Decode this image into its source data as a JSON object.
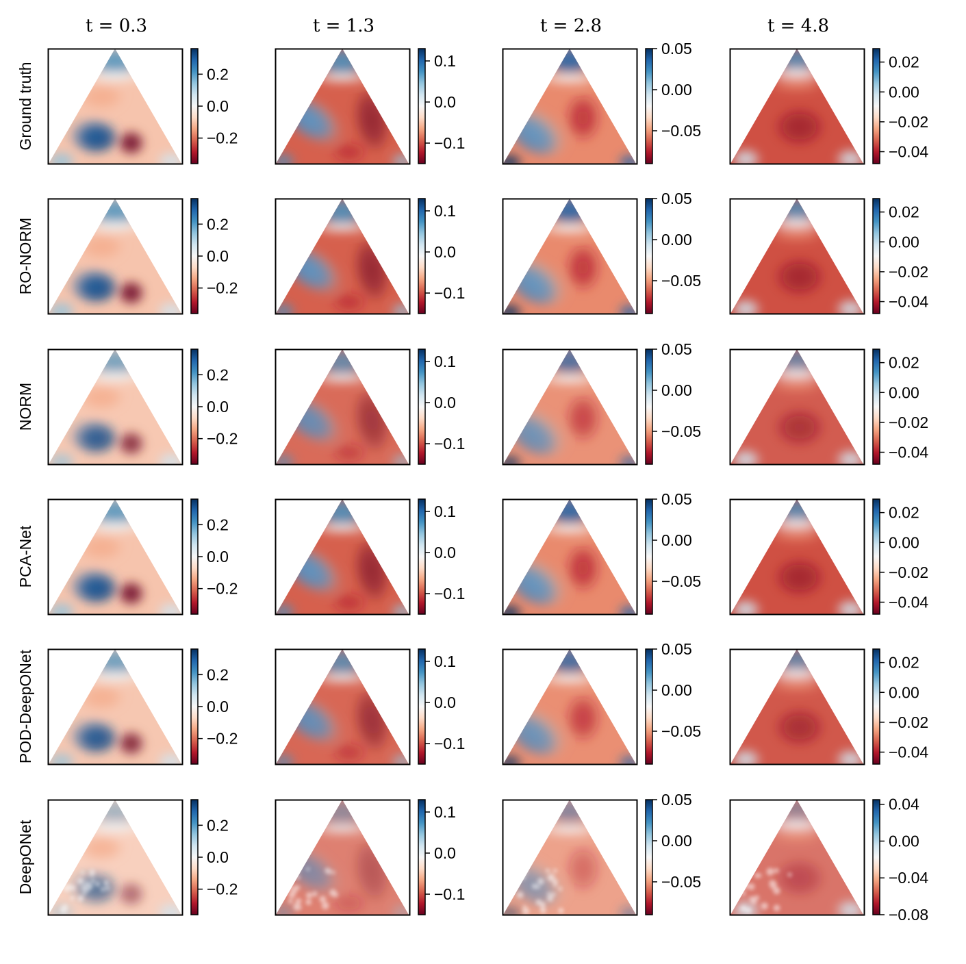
{
  "chart_data": {
    "type": "heatmap",
    "layout": "grid of triangular-domain field snapshots",
    "colormap": "RdBu",
    "colormap_stops": [
      "#67001f",
      "#b2182b",
      "#d6604d",
      "#f4a582",
      "#fddbc7",
      "#f7f7f7",
      "#d1e5f0",
      "#92c5de",
      "#4393c3",
      "#2166ac",
      "#053061"
    ],
    "columns": [
      "t = 0.3",
      "t = 1.3",
      "t = 2.8",
      "t = 4.8"
    ],
    "rows": [
      "Ground truth",
      "RO-NORM",
      "NORM",
      "PCA-Net",
      "POD-DeepONet",
      "DeepONet"
    ],
    "color_ranges": [
      [
        [
          -0.36,
          0.36
        ],
        [
          -0.15,
          0.13
        ],
        [
          -0.09,
          0.05
        ],
        [
          -0.048,
          0.029
        ]
      ],
      [
        [
          -0.36,
          0.36
        ],
        [
          -0.15,
          0.13
        ],
        [
          -0.09,
          0.05
        ],
        [
          -0.048,
          0.029
        ]
      ],
      [
        [
          -0.36,
          0.36
        ],
        [
          -0.15,
          0.13
        ],
        [
          -0.09,
          0.05
        ],
        [
          -0.048,
          0.029
        ]
      ],
      [
        [
          -0.36,
          0.36
        ],
        [
          -0.15,
          0.13
        ],
        [
          -0.09,
          0.05
        ],
        [
          -0.048,
          0.029
        ]
      ],
      [
        [
          -0.36,
          0.36
        ],
        [
          -0.15,
          0.13
        ],
        [
          -0.09,
          0.05
        ],
        [
          -0.048,
          0.029
        ]
      ],
      [
        [
          -0.36,
          0.36
        ],
        [
          -0.15,
          0.13
        ],
        [
          -0.09,
          0.05
        ],
        [
          -0.08,
          0.045
        ]
      ]
    ],
    "tick_values": [
      [
        [
          0.2,
          0.0,
          -0.2
        ],
        [
          0.1,
          0.0,
          -0.1
        ],
        [
          0.05,
          0.0,
          -0.05
        ],
        [
          0.02,
          0.0,
          -0.02,
          -0.04
        ]
      ],
      [
        [
          0.2,
          0.0,
          -0.2
        ],
        [
          0.1,
          0.0,
          -0.1
        ],
        [
          0.05,
          0.0,
          -0.05
        ],
        [
          0.02,
          0.0,
          -0.02,
          -0.04
        ]
      ],
      [
        [
          0.2,
          0.0,
          -0.2
        ],
        [
          0.1,
          0.0,
          -0.1
        ],
        [
          0.05,
          0.0,
          -0.05
        ],
        [
          0.02,
          0.0,
          -0.02,
          -0.04
        ]
      ],
      [
        [
          0.2,
          0.0,
          -0.2
        ],
        [
          0.1,
          0.0,
          -0.1
        ],
        [
          0.05,
          0.0,
          -0.05
        ],
        [
          0.02,
          0.0,
          -0.02,
          -0.04
        ]
      ],
      [
        [
          0.2,
          0.0,
          -0.2
        ],
        [
          0.1,
          0.0,
          -0.1
        ],
        [
          0.05,
          0.0,
          -0.05
        ],
        [
          0.02,
          0.0,
          -0.02,
          -0.04
        ]
      ],
      [
        [
          0.2,
          0.0,
          -0.2
        ],
        [
          0.1,
          0.0,
          -0.1
        ],
        [
          0.05,
          0.0,
          -0.05
        ],
        [
          0.04,
          0.0,
          -0.04,
          -0.08
        ]
      ]
    ],
    "tick_labels": [
      [
        [
          "0.2",
          "0.0",
          "−0.2"
        ],
        [
          "0.1",
          "0.0",
          "−0.1"
        ],
        [
          "0.05",
          "0.00",
          "−0.05"
        ],
        [
          "0.02",
          "0.00",
          "−0.02",
          "−0.04"
        ]
      ],
      [
        [
          "0.2",
          "0.0",
          "−0.2"
        ],
        [
          "0.1",
          "0.0",
          "−0.1"
        ],
        [
          "0.05",
          "0.00",
          "−0.05"
        ],
        [
          "0.02",
          "0.00",
          "−0.02",
          "−0.04"
        ]
      ],
      [
        [
          "0.2",
          "0.0",
          "−0.2"
        ],
        [
          "0.1",
          "0.0",
          "−0.1"
        ],
        [
          "0.05",
          "0.00",
          "−0.05"
        ],
        [
          "0.02",
          "0.00",
          "−0.02",
          "−0.04"
        ]
      ],
      [
        [
          "0.2",
          "0.0",
          "−0.2"
        ],
        [
          "0.1",
          "0.0",
          "−0.1"
        ],
        [
          "0.05",
          "0.00",
          "−0.05"
        ],
        [
          "0.02",
          "0.00",
          "−0.02",
          "−0.04"
        ]
      ],
      [
        [
          "0.2",
          "0.0",
          "−0.2"
        ],
        [
          "0.1",
          "0.0",
          "−0.1"
        ],
        [
          "0.05",
          "0.00",
          "−0.05"
        ],
        [
          "0.02",
          "0.00",
          "−0.02",
          "−0.04"
        ]
      ],
      [
        [
          "0.2",
          "0.0",
          "−0.2"
        ],
        [
          "0.1",
          "0.0",
          "−0.1"
        ],
        [
          "0.05",
          "0.00",
          "−0.05"
        ],
        [
          "0.04",
          "0.00",
          "−0.04",
          "−0.08"
        ]
      ]
    ],
    "field_features": {
      "t = 0.3": {
        "top": "blue",
        "lower_left": "strong blue blob",
        "lower_middle": "strong red blob",
        "corners": "light blue"
      },
      "t = 1.3": {
        "top": "blue",
        "lower_left": "elongated blue blob",
        "right": "red band",
        "corners": "light blue"
      },
      "t = 2.8": {
        "top": "blue",
        "lower_left": "blue blob",
        "middle": "red",
        "bottom_corners": "blue"
      },
      "t = 4.8": {
        "top": "blue",
        "center": "red",
        "bottom_corners": "light blue"
      }
    },
    "grid": false,
    "legend": "colorbar per panel, right of each panel"
  }
}
